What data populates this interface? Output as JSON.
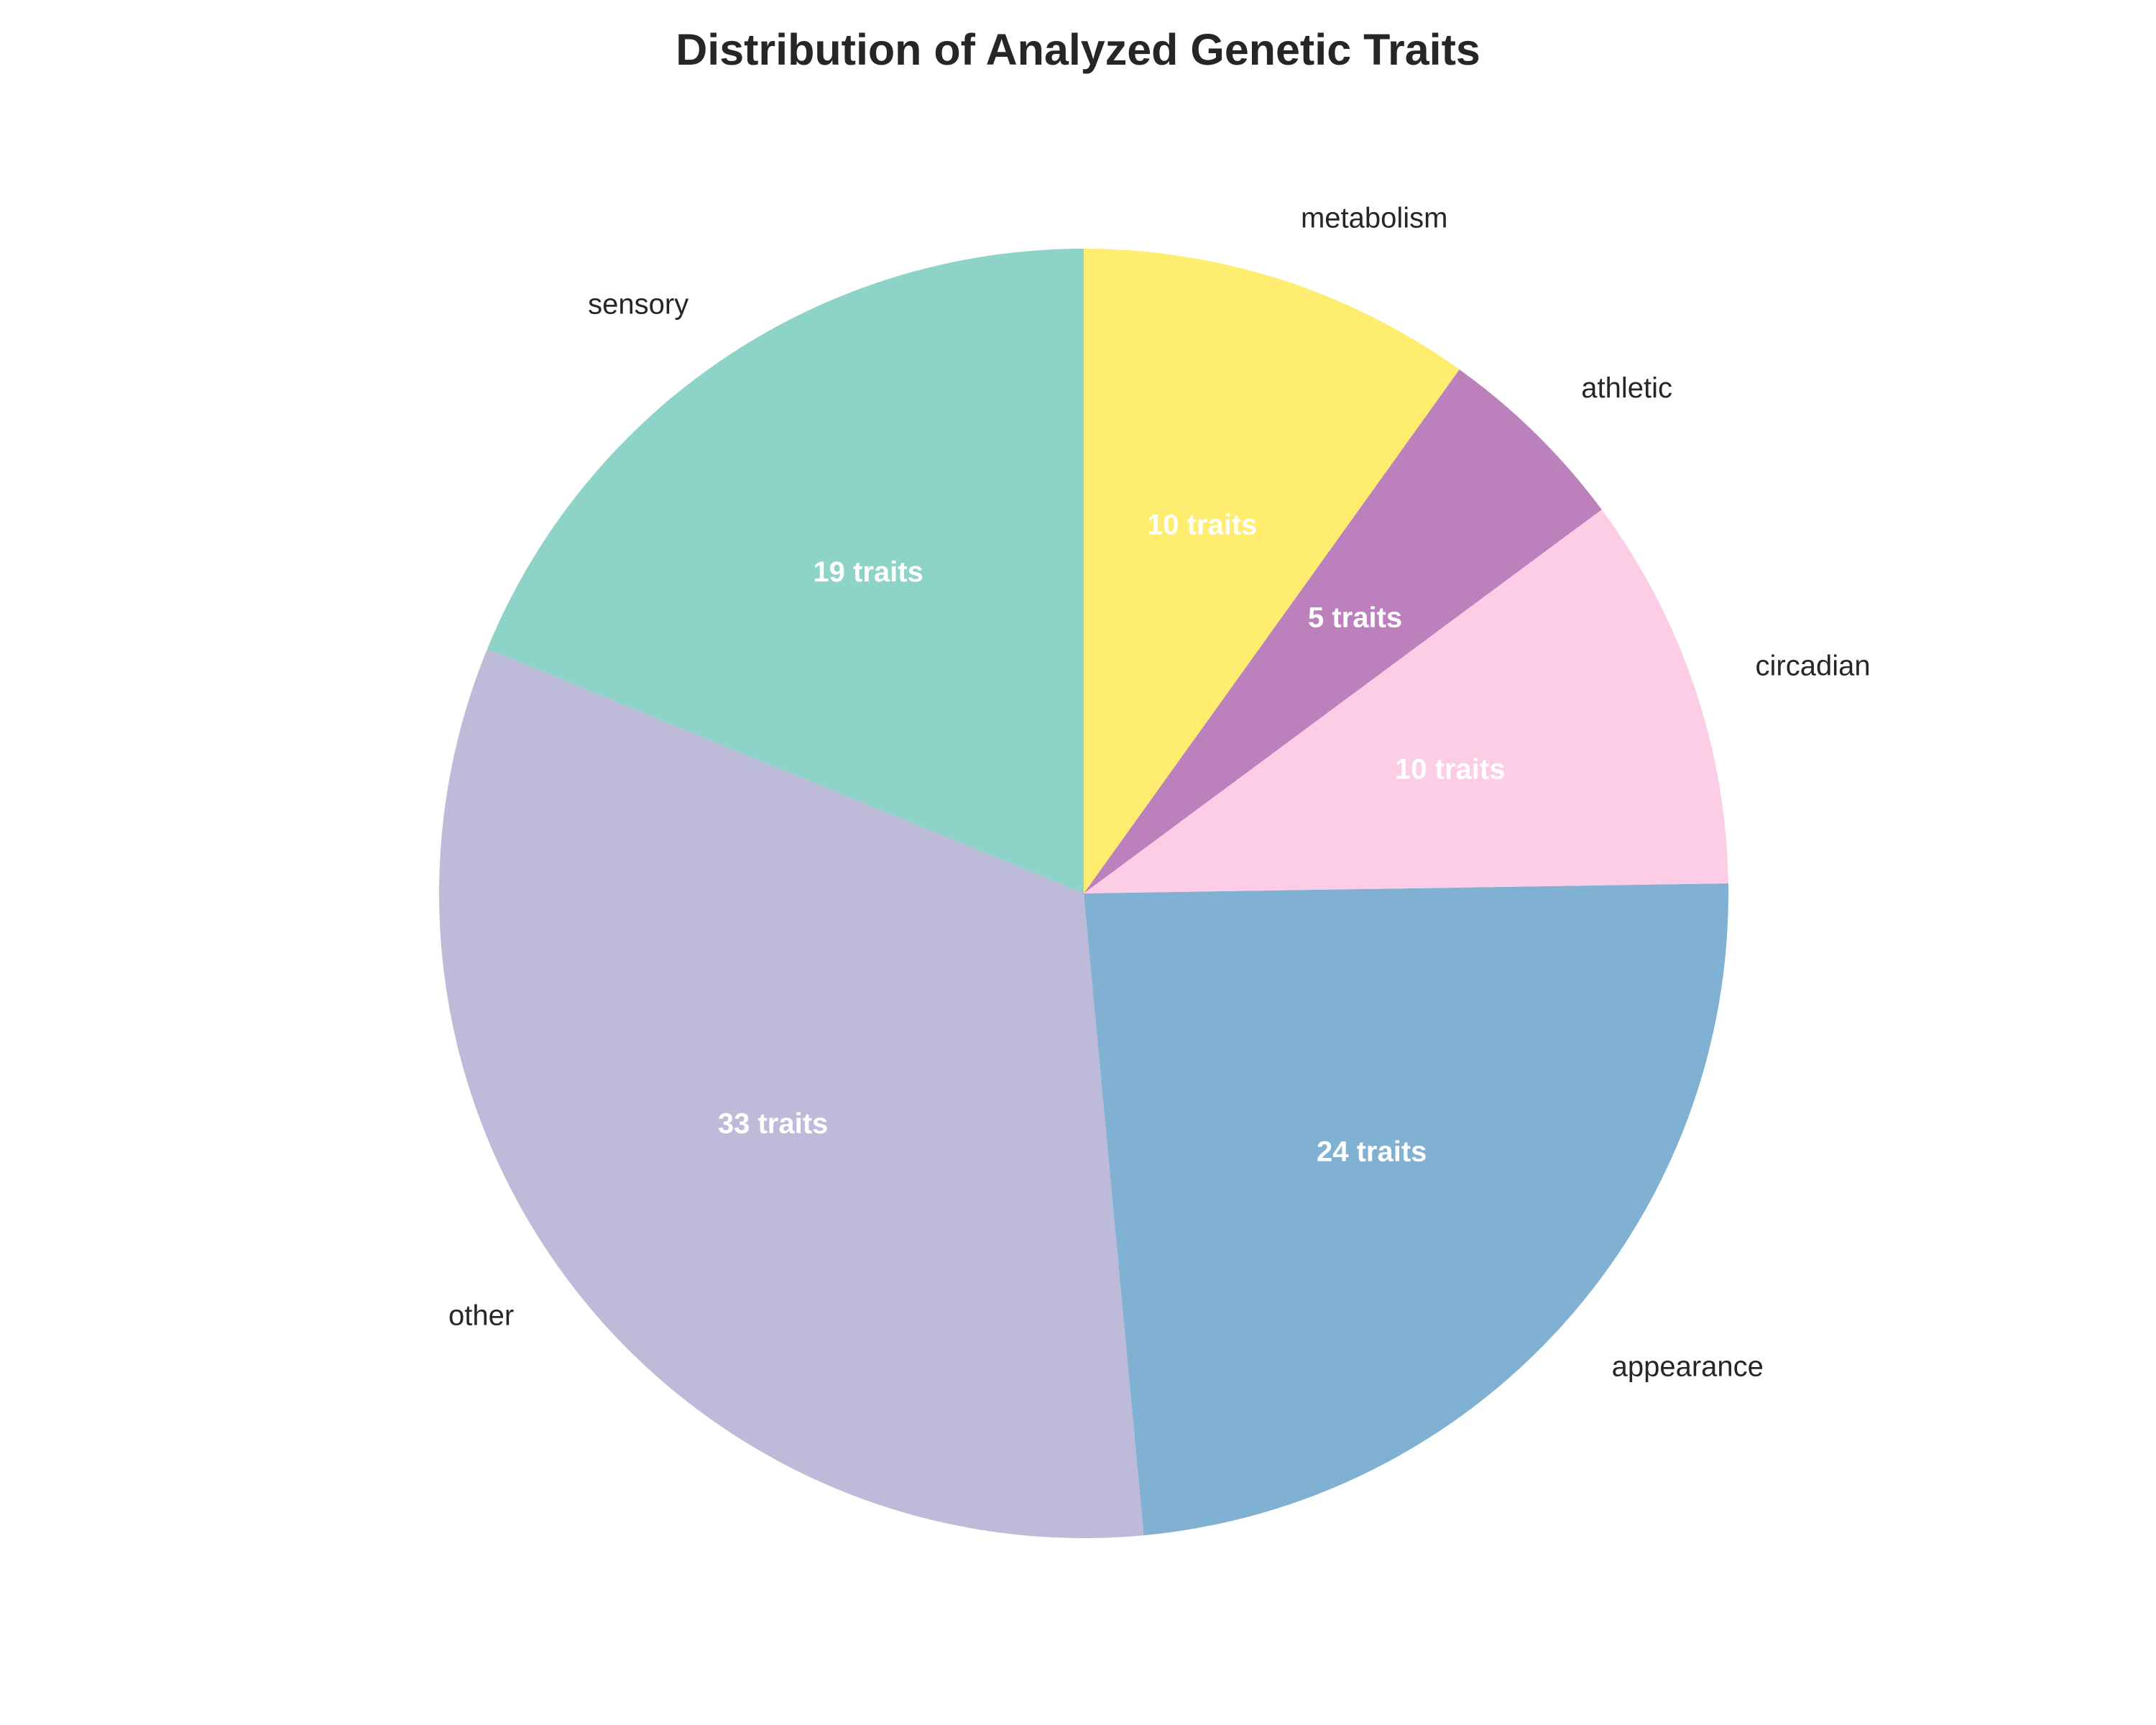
{
  "chart_data": {
    "type": "pie",
    "title": "Distribution of Analyzed Genetic Traits",
    "value_suffix": " traits",
    "start_angle_deg": 90,
    "direction": "counterclockwise",
    "slices": [
      {
        "label": "sensory",
        "value": 19,
        "color": "#8dd3c7"
      },
      {
        "label": "other",
        "value": 33,
        "color": "#bebada"
      },
      {
        "label": "appearance",
        "value": 24,
        "color": "#80b1d3"
      },
      {
        "label": "circadian",
        "value": 10,
        "color": "#fccde5"
      },
      {
        "label": "athletic",
        "value": 5,
        "color": "#bc80bd"
      },
      {
        "label": "metabolism",
        "value": 10,
        "color": "#ffed6f"
      }
    ]
  }
}
